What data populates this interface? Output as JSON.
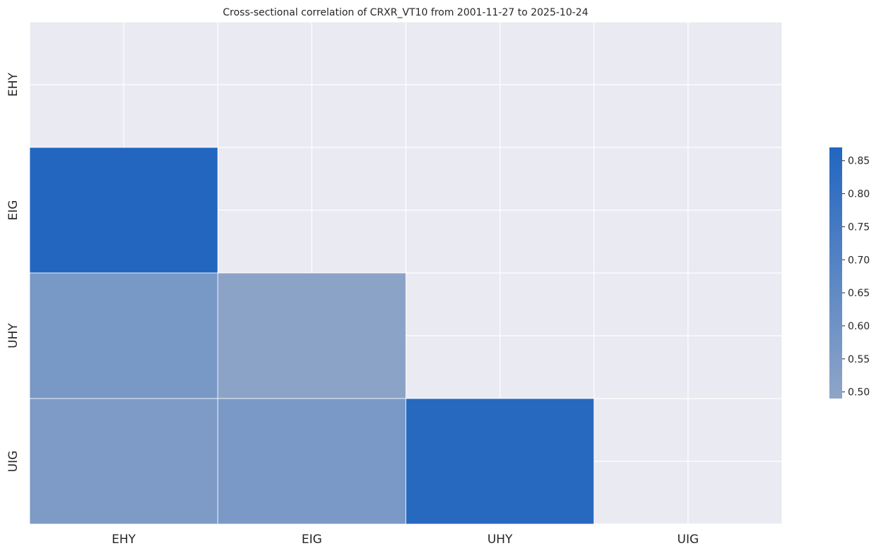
{
  "chart_data": {
    "type": "heatmap",
    "title": "Cross-sectional correlation of CRXR_VT10 from 2001-11-27 to 2025-10-24",
    "x_categories": [
      "EHY",
      "EIG",
      "UHY",
      "UIG"
    ],
    "y_categories": [
      "EHY",
      "EIG",
      "UHY",
      "UIG"
    ],
    "mask": "upper triangle incl. diagonal",
    "values": [
      [
        null,
        null,
        null,
        null
      ],
      [
        0.87,
        null,
        null,
        null
      ],
      [
        0.57,
        0.5,
        null,
        null
      ],
      [
        0.55,
        0.56,
        0.85,
        null
      ]
    ],
    "colorbar": {
      "vmin": 0.49,
      "vmax": 0.87,
      "ticks": [
        "0.50",
        "0.55",
        "0.60",
        "0.65",
        "0.70",
        "0.75",
        "0.80",
        "0.85"
      ],
      "color_low": "#8fa5c8",
      "color_high": "#2266c0"
    },
    "background_color": "#eaeaf2",
    "grid": true
  }
}
